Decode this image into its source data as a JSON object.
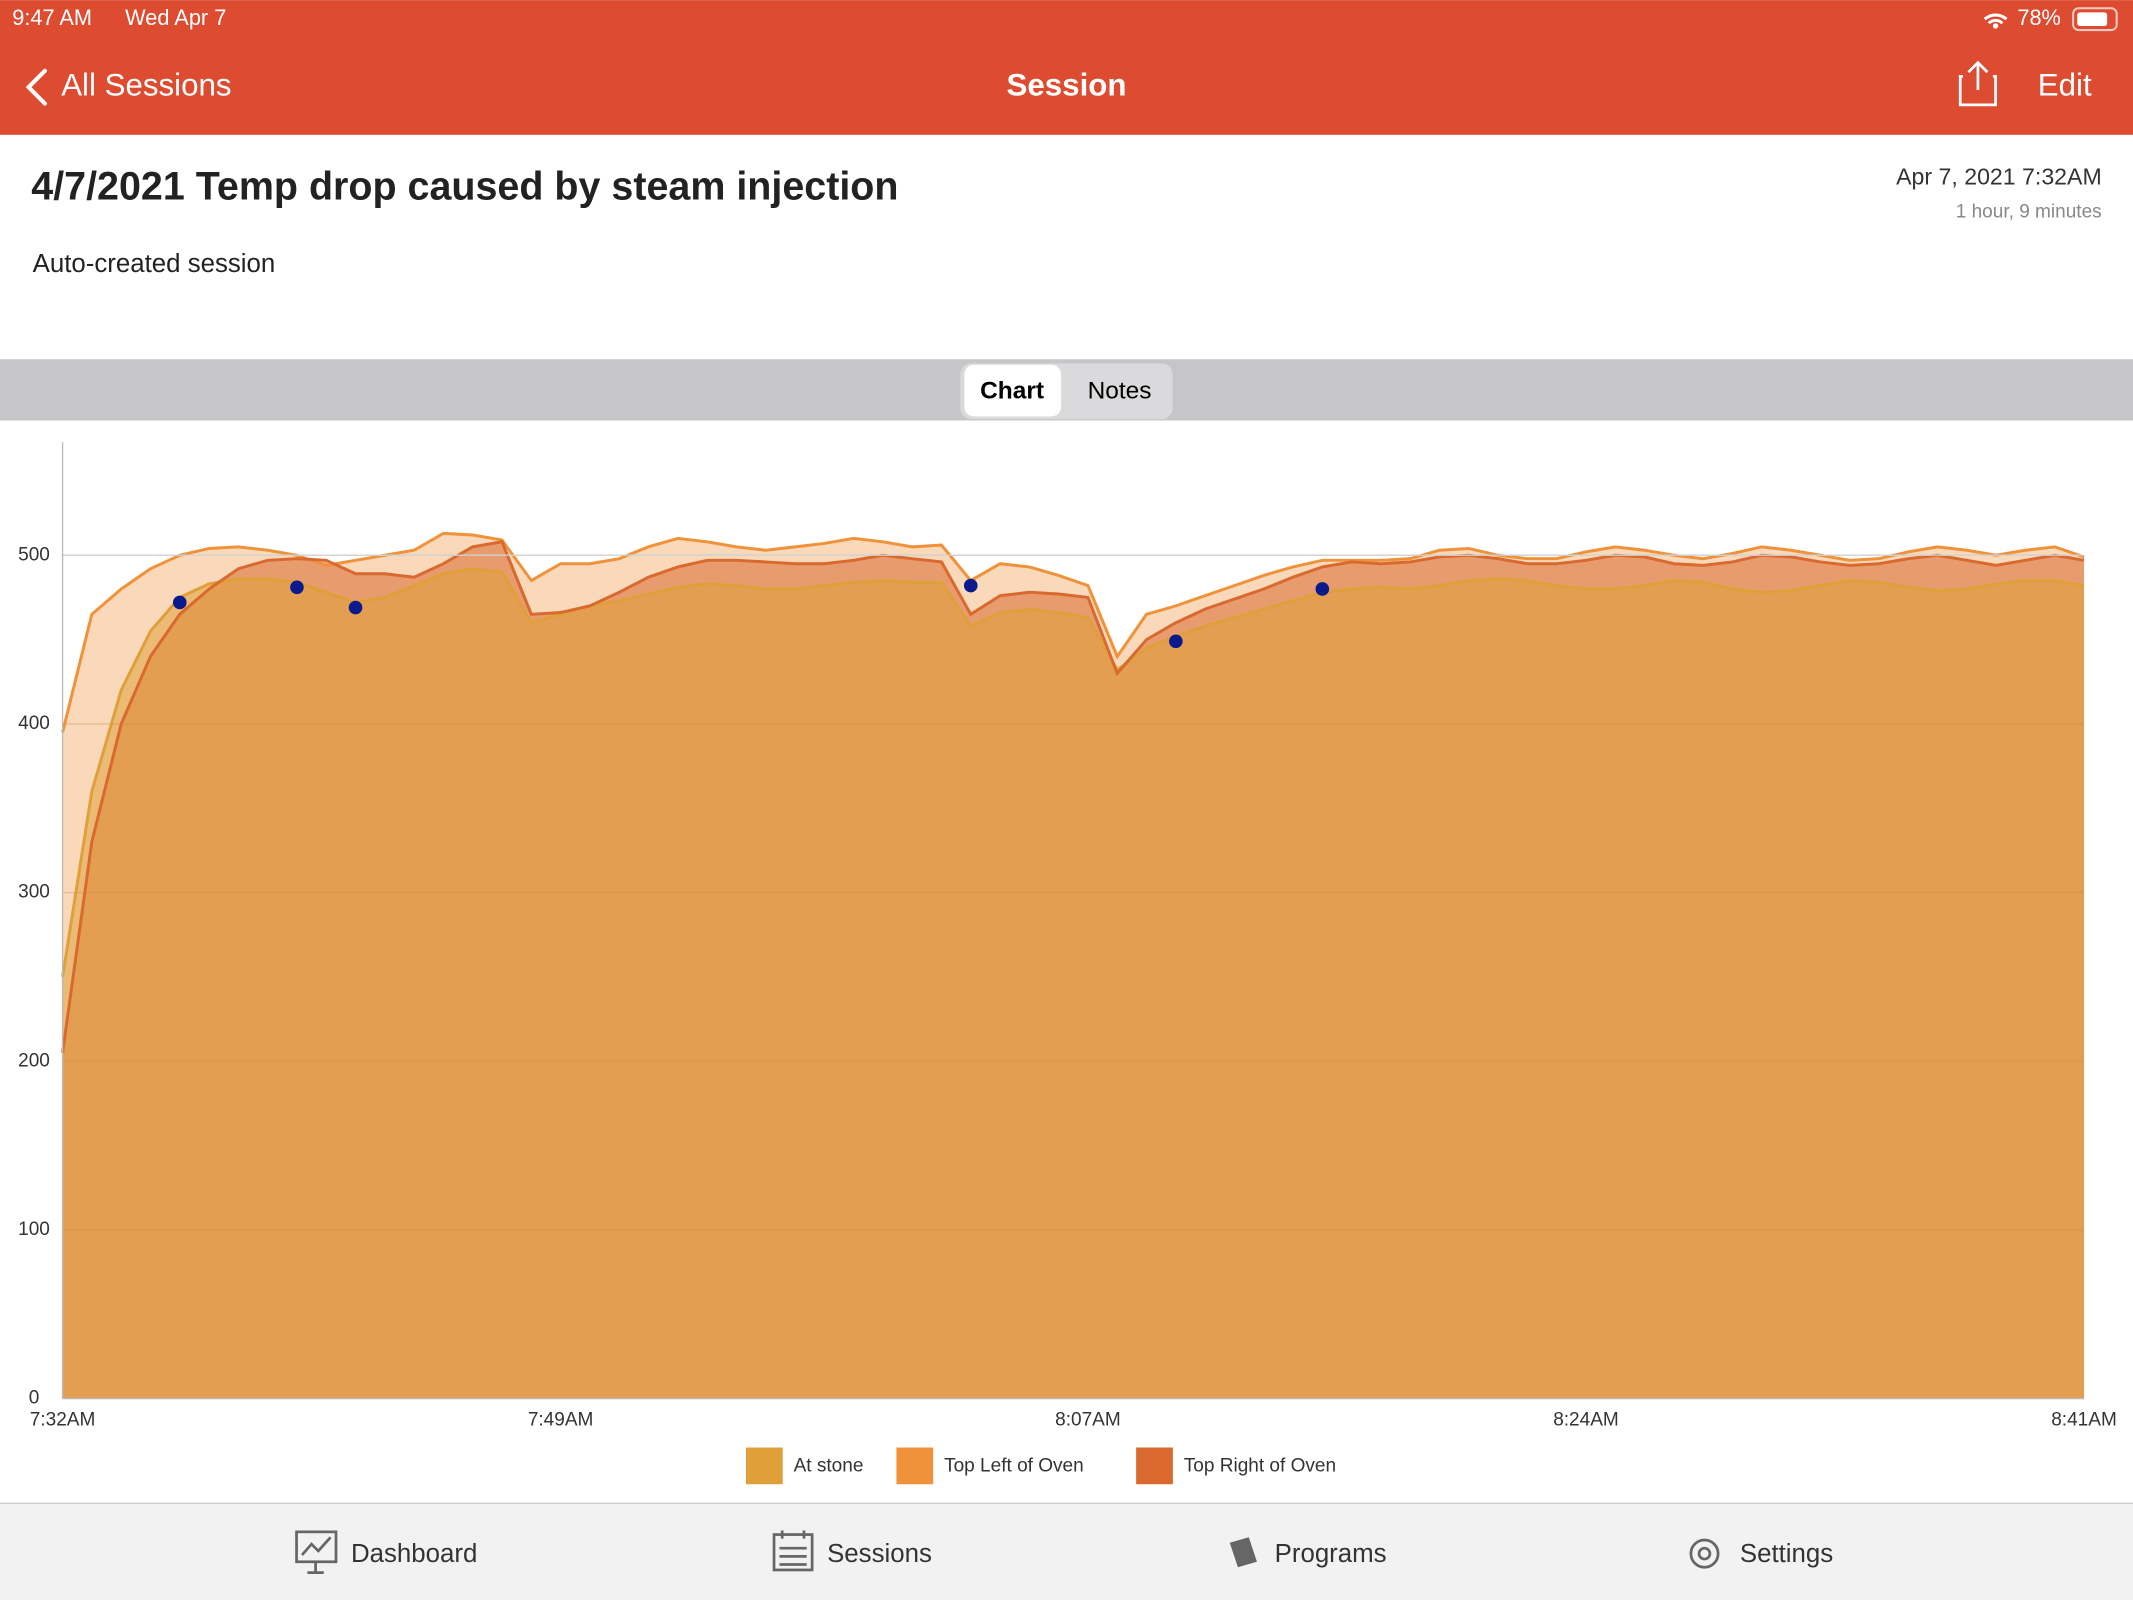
{
  "status_bar": {
    "time": "9:47 AM",
    "date": "Wed Apr 7",
    "battery": "78%"
  },
  "nav_bar": {
    "back": "All Sessions",
    "title": "Session",
    "edit": "Edit"
  },
  "session": {
    "title": "4/7/2021 Temp drop caused by steam injection",
    "date": "Apr 7, 2021 7:32AM",
    "duration": "1 hour, 9 minutes",
    "description": "Auto-created session"
  },
  "segments": [
    "Chart",
    "Notes"
  ],
  "chart_data": {
    "type": "area",
    "x": [
      "7:32AM",
      "7:33AM",
      "7:34AM",
      "7:35AM",
      "7:36AM",
      "7:37AM",
      "7:38AM",
      "7:39AM",
      "7:40AM",
      "7:41AM",
      "7:42AM",
      "7:43AM",
      "7:44AM",
      "7:45AM",
      "7:46AM",
      "7:47AM",
      "7:48AM",
      "7:49AM",
      "7:50AM",
      "7:51AM",
      "7:52AM",
      "7:53AM",
      "7:54AM",
      "7:55AM",
      "7:56AM",
      "7:57AM",
      "7:58AM",
      "7:59AM",
      "8:00AM",
      "8:01AM",
      "8:02AM",
      "8:03AM",
      "8:04AM",
      "8:05AM",
      "8:06AM",
      "8:07AM",
      "8:08AM",
      "8:09AM",
      "8:10AM",
      "8:11AM",
      "8:12AM",
      "8:13AM",
      "8:14AM",
      "8:15AM",
      "8:16AM",
      "8:17AM",
      "8:18AM",
      "8:19AM",
      "8:20AM",
      "8:21AM",
      "8:22AM",
      "8:23AM",
      "8:24AM",
      "8:25AM",
      "8:26AM",
      "8:27AM",
      "8:28AM",
      "8:29AM",
      "8:30AM",
      "8:31AM",
      "8:32AM",
      "8:33AM",
      "8:34AM",
      "8:35AM",
      "8:36AM",
      "8:37AM",
      "8:38AM",
      "8:39AM",
      "8:40AM",
      "8:41AM"
    ],
    "series": [
      {
        "name": "At stone",
        "color": "#dfa03a",
        "values": [
          250,
          360,
          420,
          455,
          475,
          483,
          486,
          486,
          484,
          478,
          472,
          475,
          482,
          489,
          492,
          490,
          460,
          465,
          470,
          473,
          477,
          481,
          483,
          482,
          480,
          480,
          482,
          484,
          485,
          484,
          484,
          458,
          466,
          468,
          466,
          463,
          432,
          445,
          452,
          458,
          463,
          468,
          473,
          478,
          480,
          481,
          480,
          482,
          485,
          486,
          485,
          482,
          480,
          480,
          482,
          485,
          484,
          480,
          478,
          479,
          482,
          485,
          484,
          481,
          479,
          480,
          483,
          485,
          485,
          482
        ]
      },
      {
        "name": "Top Left of Oven",
        "color": "#f0923a",
        "values": [
          395,
          465,
          480,
          492,
          500,
          504,
          505,
          503,
          500,
          494,
          497,
          500,
          503,
          513,
          512,
          509,
          485,
          495,
          495,
          498,
          505,
          510,
          508,
          505,
          503,
          505,
          507,
          510,
          508,
          505,
          506,
          485,
          495,
          493,
          488,
          482,
          440,
          465,
          470,
          476,
          482,
          488,
          493,
          497,
          497,
          497,
          498,
          503,
          504,
          500,
          498,
          498,
          502,
          505,
          503,
          500,
          498,
          501,
          505,
          503,
          500,
          497,
          498,
          502,
          505,
          503,
          500,
          503,
          505,
          499
        ]
      },
      {
        "name": "Top Right of Oven",
        "color": "#d9692e",
        "values": [
          205,
          330,
          400,
          440,
          465,
          480,
          492,
          497,
          498,
          497,
          489,
          489,
          487,
          495,
          505,
          508,
          465,
          466,
          470,
          478,
          487,
          493,
          497,
          497,
          496,
          495,
          495,
          497,
          500,
          498,
          496,
          465,
          476,
          478,
          477,
          475,
          430,
          450,
          460,
          468,
          474,
          480,
          487,
          493,
          496,
          495,
          496,
          499,
          500,
          498,
          495,
          495,
          497,
          500,
          499,
          495,
          494,
          496,
          500,
          499,
          496,
          494,
          495,
          498,
          500,
          497,
          494,
          497,
          500,
          497
        ]
      }
    ],
    "markers": [
      {
        "x": "7:36AM",
        "value": 472
      },
      {
        "x": "7:40AM",
        "value": 481
      },
      {
        "x": "7:42AM",
        "value": 469
      },
      {
        "x": "8:03AM",
        "value": 482
      },
      {
        "x": "8:10AM",
        "value": 449
      },
      {
        "x": "8:15AM",
        "value": 480
      }
    ],
    "marker_color": "#0a1a8c",
    "xticks": [
      "7:32AM",
      "7:49AM",
      "8:07AM",
      "8:24AM",
      "8:41AM"
    ],
    "ylim": [
      0,
      567
    ],
    "yticks": [
      0,
      100,
      200,
      300,
      400,
      500
    ],
    "grid": true,
    "legend": "bottom"
  },
  "tab_bar": [
    "Dashboard",
    "Sessions",
    "Programs",
    "Settings"
  ]
}
